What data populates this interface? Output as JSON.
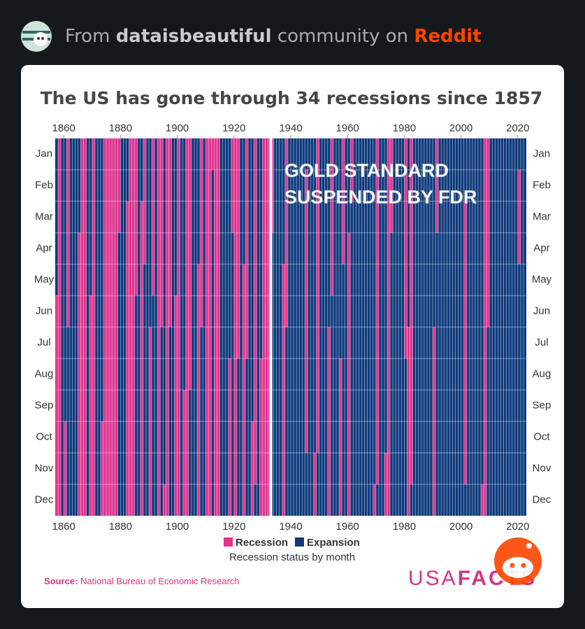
{
  "header": {
    "prefix": "From",
    "community": "dataisbeautiful",
    "middle": "community on",
    "site": "Reddit"
  },
  "chart_data": {
    "type": "heatmap",
    "title": "The US has gone through 34 recessions since 1857",
    "categories": [
      "Jan",
      "Feb",
      "Mar",
      "Apr",
      "May",
      "Jun",
      "Jul",
      "Aug",
      "Sep",
      "Oct",
      "Nov",
      "Dec"
    ],
    "xlim": [
      1857,
      2023
    ],
    "xticks": [
      1860,
      1880,
      1900,
      1920,
      1940,
      1960,
      1980,
      2000,
      2020
    ],
    "series": [
      {
        "name": "Recession",
        "color": "#e3338f"
      },
      {
        "name": "Expansion",
        "color": "#0e3a7c"
      }
    ],
    "recessions": [
      {
        "start": [
          1857,
          6
        ],
        "end": [
          1858,
          12
        ]
      },
      {
        "start": [
          1860,
          10
        ],
        "end": [
          1861,
          6
        ]
      },
      {
        "start": [
          1865,
          4
        ],
        "end": [
          1867,
          12
        ]
      },
      {
        "start": [
          1869,
          6
        ],
        "end": [
          1870,
          12
        ]
      },
      {
        "start": [
          1873,
          10
        ],
        "end": [
          1879,
          3
        ]
      },
      {
        "start": [
          1882,
          3
        ],
        "end": [
          1885,
          5
        ]
      },
      {
        "start": [
          1887,
          3
        ],
        "end": [
          1888,
          4
        ]
      },
      {
        "start": [
          1890,
          7
        ],
        "end": [
          1891,
          5
        ]
      },
      {
        "start": [
          1893,
          1
        ],
        "end": [
          1894,
          6
        ]
      },
      {
        "start": [
          1895,
          12
        ],
        "end": [
          1897,
          6
        ]
      },
      {
        "start": [
          1899,
          6
        ],
        "end": [
          1900,
          12
        ]
      },
      {
        "start": [
          1902,
          9
        ],
        "end": [
          1904,
          8
        ]
      },
      {
        "start": [
          1907,
          5
        ],
        "end": [
          1908,
          6
        ]
      },
      {
        "start": [
          1910,
          1
        ],
        "end": [
          1912,
          1
        ]
      },
      {
        "start": [
          1913,
          1
        ],
        "end": [
          1914,
          12
        ]
      },
      {
        "start": [
          1918,
          8
        ],
        "end": [
          1919,
          3
        ]
      },
      {
        "start": [
          1920,
          1
        ],
        "end": [
          1921,
          7
        ]
      },
      {
        "start": [
          1923,
          5
        ],
        "end": [
          1924,
          7
        ]
      },
      {
        "start": [
          1926,
          10
        ],
        "end": [
          1927,
          11
        ]
      },
      {
        "start": [
          1929,
          8
        ],
        "end": [
          1933,
          3
        ]
      },
      {
        "start": [
          1937,
          5
        ],
        "end": [
          1938,
          6
        ]
      },
      {
        "start": [
          1945,
          2
        ],
        "end": [
          1945,
          10
        ]
      },
      {
        "start": [
          1948,
          11
        ],
        "end": [
          1949,
          10
        ]
      },
      {
        "start": [
          1953,
          7
        ],
        "end": [
          1954,
          5
        ]
      },
      {
        "start": [
          1957,
          8
        ],
        "end": [
          1958,
          4
        ]
      },
      {
        "start": [
          1960,
          4
        ],
        "end": [
          1961,
          2
        ]
      },
      {
        "start": [
          1969,
          12
        ],
        "end": [
          1970,
          11
        ]
      },
      {
        "start": [
          1973,
          11
        ],
        "end": [
          1975,
          3
        ]
      },
      {
        "start": [
          1980,
          1
        ],
        "end": [
          1980,
          7
        ]
      },
      {
        "start": [
          1981,
          7
        ],
        "end": [
          1982,
          11
        ]
      },
      {
        "start": [
          1990,
          7
        ],
        "end": [
          1991,
          3
        ]
      },
      {
        "start": [
          2001,
          3
        ],
        "end": [
          2001,
          11
        ]
      },
      {
        "start": [
          2007,
          12
        ],
        "end": [
          2009,
          6
        ]
      },
      {
        "start": [
          2020,
          2
        ],
        "end": [
          2020,
          4
        ]
      }
    ],
    "annotation": {
      "lines": [
        "GOLD STANDARD",
        "SUSPENDED BY FDR"
      ],
      "x": 1933
    },
    "subtitle": "Recession status by month"
  },
  "footer": {
    "source_label": "Source:",
    "source": "National Bureau of Economic Research",
    "logo_a": "USA",
    "logo_b": "FACTS"
  }
}
